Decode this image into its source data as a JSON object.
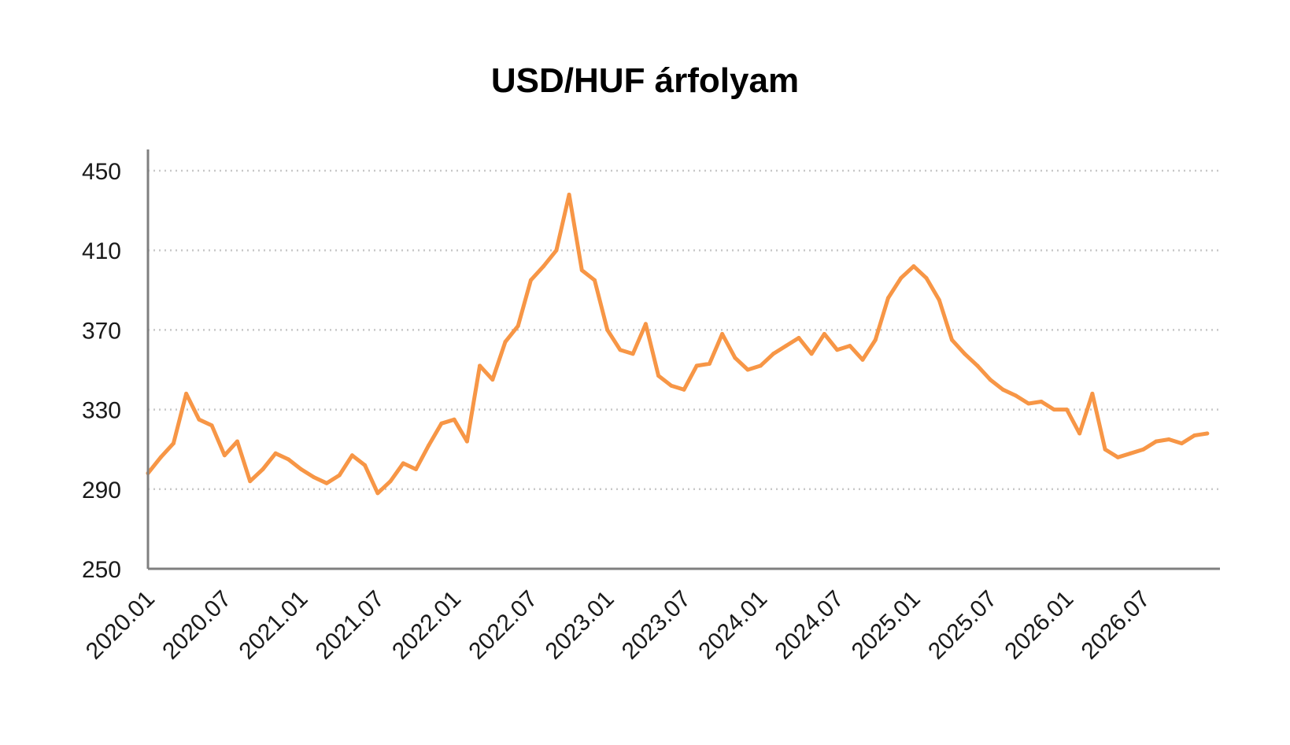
{
  "chart_data": {
    "type": "line",
    "title": "USD/HUF árfolyam",
    "xlabel": "",
    "ylabel": "",
    "ylim": [
      250,
      450
    ],
    "yticks": [
      250,
      290,
      330,
      370,
      410,
      450
    ],
    "xlim": [
      "2020.01",
      "2026.12"
    ],
    "xtick_labels": [
      "2020.01",
      "2020.07",
      "2021.01",
      "2021.07",
      "2022.01",
      "2022.07",
      "2023.01",
      "2023.07",
      "2024.01",
      "2024.07",
      "2025.01",
      "2025.07",
      "2026.01",
      "2026.07"
    ],
    "grid": "horizontal dotted",
    "legend": "none",
    "line_color": "#f79646",
    "series": [
      {
        "x": [
          "2020.01",
          "2020.02",
          "2020.03",
          "2020.04",
          "2020.05",
          "2020.06",
          "2020.07",
          "2020.08",
          "2020.09",
          "2020.10",
          "2020.11",
          "2020.12",
          "2021.01",
          "2021.02",
          "2021.03",
          "2021.04",
          "2021.05",
          "2021.06",
          "2021.07",
          "2021.08",
          "2021.09",
          "2021.10",
          "2021.11",
          "2021.12",
          "2022.01",
          "2022.02",
          "2022.03",
          "2022.04",
          "2022.05",
          "2022.06",
          "2022.07",
          "2022.08",
          "2022.09",
          "2022.10",
          "2022.11",
          "2022.12",
          "2023.01",
          "2023.02",
          "2023.03",
          "2023.04",
          "2023.05",
          "2023.06",
          "2023.07",
          "2023.08",
          "2023.09",
          "2023.10",
          "2023.11",
          "2023.12",
          "2024.01",
          "2024.02",
          "2024.03",
          "2024.04",
          "2024.05",
          "2024.06",
          "2024.07",
          "2024.08",
          "2024.09",
          "2024.10",
          "2024.11",
          "2024.12",
          "2025.01",
          "2025.02",
          "2025.03",
          "2025.04",
          "2025.05",
          "2025.06",
          "2025.07",
          "2025.08",
          "2025.09",
          "2025.10",
          "2025.11",
          "2025.12",
          "2026.01",
          "2026.02",
          "2026.03",
          "2026.04",
          "2026.05",
          "2026.06",
          "2026.07",
          "2026.08",
          "2026.09",
          "2026.10",
          "2026.11",
          "2026.12"
        ],
        "values": [
          298,
          306,
          313,
          338,
          325,
          322,
          307,
          314,
          294,
          300,
          308,
          305,
          300,
          296,
          293,
          297,
          307,
          302,
          288,
          294,
          303,
          300,
          312,
          323,
          325,
          314,
          352,
          345,
          364,
          372,
          395,
          402,
          410,
          438,
          400,
          395,
          370,
          360,
          358,
          373,
          347,
          342,
          340,
          352,
          353,
          368,
          356,
          350,
          352,
          358,
          362,
          366,
          358,
          368,
          360,
          362,
          355,
          365,
          386,
          396,
          402,
          396,
          385,
          365,
          358,
          352,
          345,
          340,
          337,
          333,
          334,
          330,
          330,
          318,
          338,
          310,
          306,
          308,
          310,
          314,
          315,
          313,
          317,
          318
        ]
      }
    ]
  }
}
